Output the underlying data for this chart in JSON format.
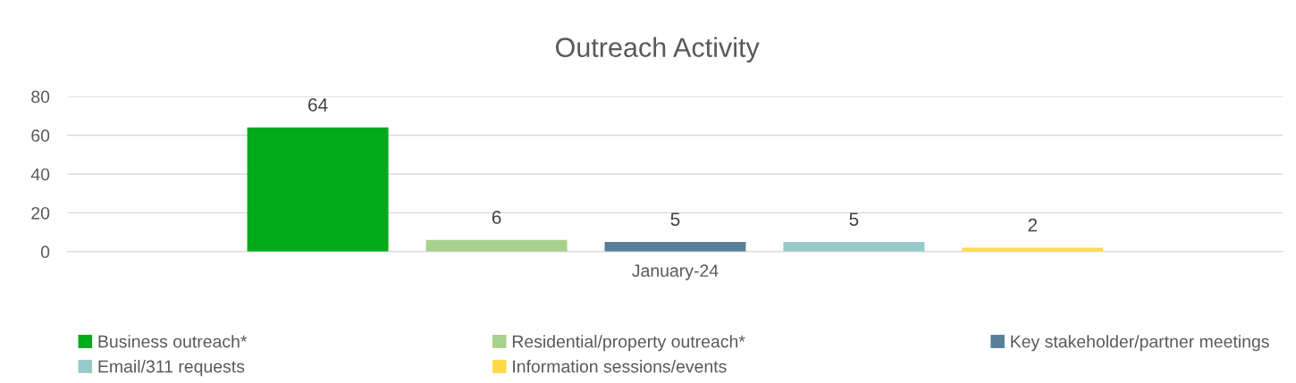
{
  "chart_data": {
    "type": "bar",
    "title": "Outreach Activity",
    "categories": [
      "January-24"
    ],
    "series": [
      {
        "name": "Business outreach*",
        "color": "#00aa1a",
        "values": [
          64
        ]
      },
      {
        "name": "Residential/property outreach*",
        "color": "#a9d18e",
        "values": [
          6
        ]
      },
      {
        "name": "Key stakeholder/partner meetings",
        "color": "#5a7f99",
        "values": [
          5
        ]
      },
      {
        "name": "Email/311 requests",
        "color": "#97cbc9",
        "values": [
          5
        ]
      },
      {
        "name": "Information sessions/events",
        "color": "#ffd94a",
        "values": [
          2
        ]
      }
    ],
    "ylim": [
      0,
      80
    ],
    "yticks": [
      0,
      20,
      40,
      60,
      80
    ],
    "grid": "y",
    "legend": "bottom",
    "data_labels": true
  }
}
